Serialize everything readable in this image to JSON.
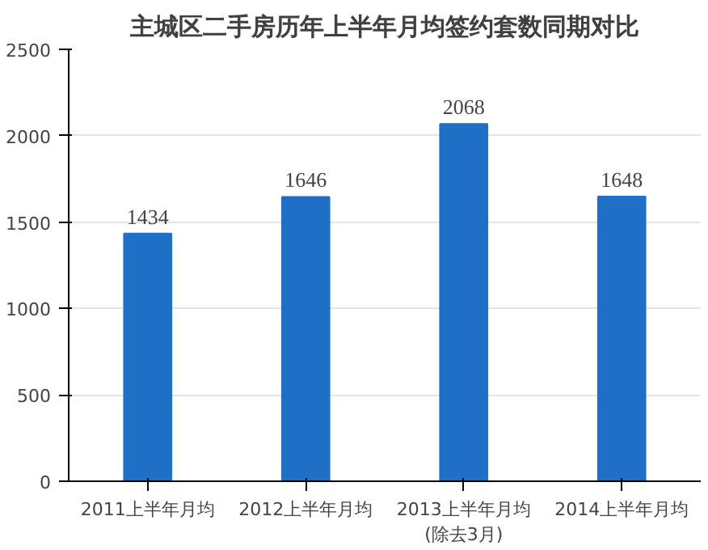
{
  "chart_data": {
    "type": "bar",
    "title": "主城区二手房历年上半年月均签约套数同期对比",
    "categories": [
      "2011上半年月均",
      "2012上半年月均",
      "2013上半年月均\n(除去3月)",
      "2014上半年月均"
    ],
    "values": [
      1434,
      1646,
      2068,
      1648
    ],
    "color": "#1f6fc6",
    "ylim": [
      0,
      2500
    ],
    "yticks": [
      0,
      500,
      1000,
      1500,
      2000,
      2500
    ],
    "grid": "y",
    "data_labels": true
  }
}
